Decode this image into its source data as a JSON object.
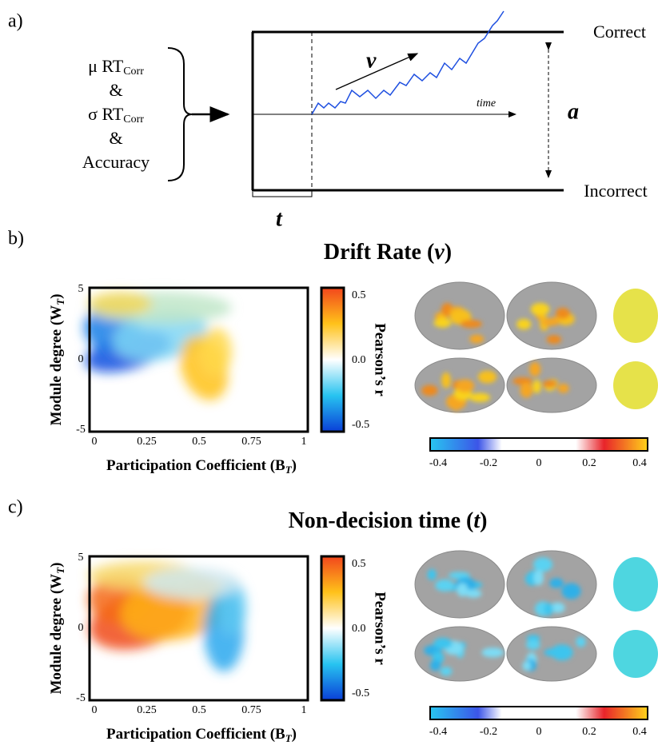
{
  "panel_a": {
    "label": "a)",
    "inputs": [
      {
        "text": "μ RT",
        "sub": "Corr"
      },
      {
        "text": "&"
      },
      {
        "text": "σ RT",
        "sub": "Corr"
      },
      {
        "text": "&"
      },
      {
        "text": "Accuracy"
      }
    ],
    "upper_bound": "Correct",
    "lower_bound": "Incorrect",
    "drift": "v",
    "threshold": "a",
    "non_decision": "t",
    "time_axis": "time"
  },
  "panels": [
    {
      "label": "b)",
      "title": "Drift Rate (",
      "title_param": "v",
      "title_end": ")",
      "scatter": {
        "y_label": "Module degree (W",
        "y_label_sub": "T",
        "y_label_end": ")",
        "x_label": "Participation Coefficient (B",
        "x_label_sub": "T",
        "x_label_end": ")",
        "xticks": [
          0,
          0.25,
          0.5,
          0.75,
          1
        ],
        "yticks": [
          -5,
          0,
          5
        ],
        "colorbar_ticks": [
          -0.5,
          {
            "value": 0,
            "label": "0.0"
          },
          0.5
        ],
        "colorbar_label": "Pearson’s r"
      },
      "brain_colorbar_ticks": [
        -0.4,
        -0.2,
        0,
        0.2,
        0.4
      ]
    },
    {
      "label": "c)",
      "title": "Non-decision time (",
      "title_param": "t",
      "title_end": ")",
      "scatter": {
        "y_label": "Module degree (W",
        "y_label_sub": "T",
        "y_label_end": ")",
        "x_label": "Participation Coefficient (B",
        "x_label_sub": "T",
        "x_label_end": ")",
        "xticks": [
          0,
          0.25,
          0.5,
          0.75,
          1
        ],
        "yticks": [
          -5,
          0,
          5
        ],
        "colorbar_ticks": [
          -0.5,
          {
            "value": 0,
            "label": "0.0"
          },
          0.5
        ],
        "colorbar_label": "Pearson’s r"
      },
      "brain_colorbar_ticks": [
        -0.4,
        -0.2,
        0,
        0.2,
        0.4
      ]
    }
  ]
}
